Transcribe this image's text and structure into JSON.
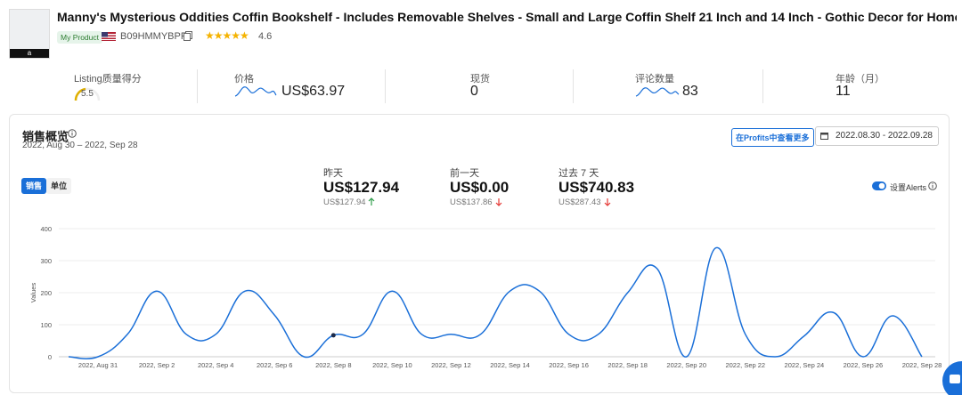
{
  "header": {
    "title": "Manny's Mysterious Oddities Coffin Bookshelf - Includes Removable Shelves - Small and Large Coffin Shelf 21 Inch and 14 Inch - Gothic Decor for Home",
    "badge": "My Product",
    "asin": "B09HMMYBPF",
    "rating": "4.6"
  },
  "metrics": [
    {
      "label": "Listing质量得分",
      "value": "5.5"
    },
    {
      "label": "价格",
      "value": "US$63.97"
    },
    {
      "label": "现货",
      "value": "0"
    },
    {
      "label": "评论数量",
      "value": "83"
    },
    {
      "label": "年龄（月）",
      "value": "11"
    }
  ],
  "sales": {
    "title": "销售概览",
    "range": "2022, Aug 30 – 2022, Sep 28",
    "button": "在Profits中查看更多",
    "date_picker": "2022.08.30 - 2022.09.28",
    "tabs": [
      "销售",
      "单位"
    ],
    "alerts": "设置Alerts",
    "stats": [
      {
        "label": "昨天",
        "value": "US$127.94",
        "compare": "US$127.94"
      },
      {
        "label": "前一天",
        "value": "US$0.00",
        "compare": "US$137.86"
      },
      {
        "label": "过去 7 天",
        "value": "US$740.83",
        "compare": "US$287.43"
      }
    ]
  },
  "chart_data": {
    "type": "line",
    "y_label": "Values",
    "categories": [
      null,
      "2022, Aug 31",
      null,
      "2022, Sep 2",
      null,
      "2022, Sep 4",
      null,
      "2022, Sep 6",
      null,
      "2022, Sep 8",
      null,
      "2022, Sep 10",
      null,
      "2022, Sep 12",
      null,
      "2022, Sep 14",
      null,
      "2022, Sep 16",
      null,
      "2022, Sep 18",
      null,
      "2022, Sep 20",
      null,
      "2022, Sep 22",
      null,
      "2022, Sep 24",
      null,
      "2022, Sep 26",
      null,
      "2022, Sep 28"
    ],
    "values": [
      0,
      0,
      70,
      205,
      70,
      70,
      205,
      130,
      0,
      67,
      70,
      205,
      70,
      70,
      70,
      205,
      205,
      70,
      70,
      200,
      275,
      0,
      340,
      70,
      0,
      65,
      137.86,
      0,
      127.94,
      0
    ],
    "color": "#1a6fd8",
    "ylim": [
      0,
      400
    ],
    "yticks": [
      0,
      100,
      200,
      300,
      400
    ],
    "grid": true,
    "highlight_index": 9
  }
}
